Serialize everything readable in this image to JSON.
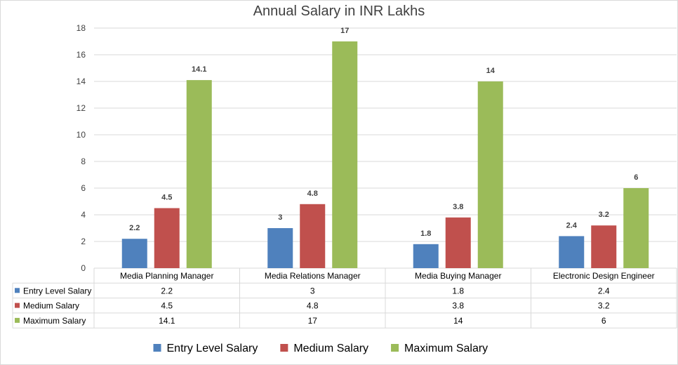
{
  "chart_data": {
    "type": "bar",
    "title": "Annual Salary in INR Lakhs",
    "categories": [
      "Media Planning Manager",
      "Media Relations Manager",
      "Media Buying Manager",
      "Electronic Design Engineer"
    ],
    "series": [
      {
        "name": "Entry Level Salary",
        "color": "#4f81bd",
        "values": [
          2.2,
          3,
          1.8,
          2.4
        ]
      },
      {
        "name": "Medium Salary",
        "color": "#c0504d",
        "values": [
          4.5,
          4.8,
          3.8,
          3.2
        ]
      },
      {
        "name": "Maximum Salary",
        "color": "#9bbb59",
        "values": [
          14.1,
          17,
          14,
          6
        ]
      }
    ],
    "ylim": [
      0,
      18
    ],
    "yticks": [
      0,
      2,
      4,
      6,
      8,
      10,
      12,
      14,
      16,
      18
    ],
    "xlabel": "",
    "ylabel": "",
    "grid": true,
    "legend": "bottom",
    "data_table": true
  }
}
